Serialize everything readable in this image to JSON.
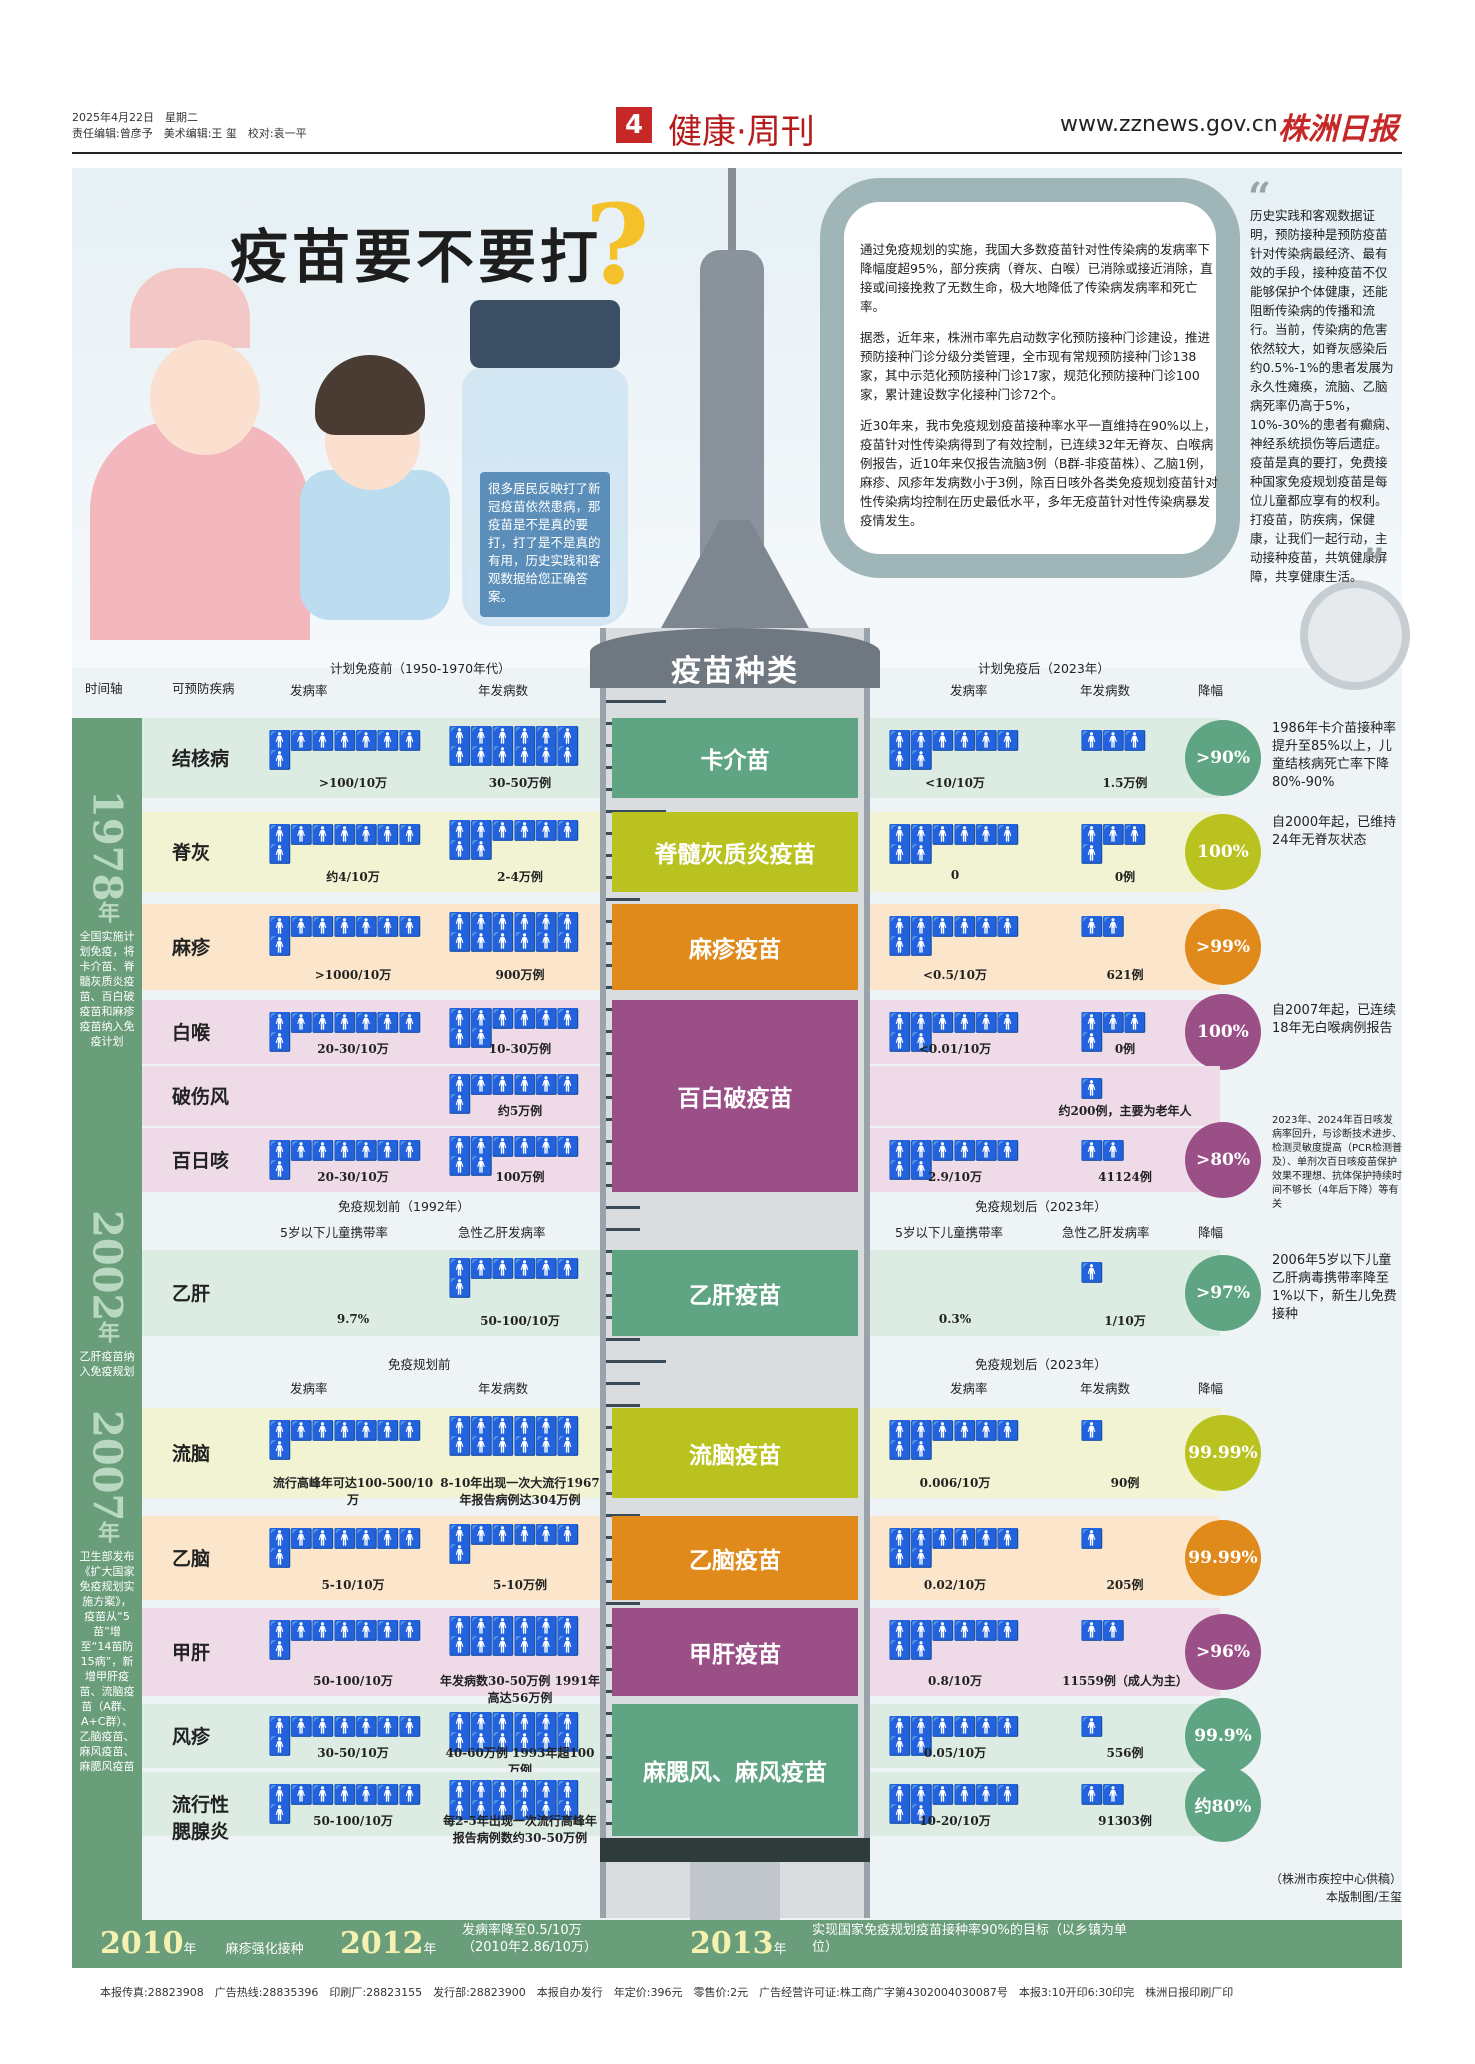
{
  "header": {
    "date": "2025年4月22日　星期二",
    "editors": "责任编辑:曾彦予　美术编辑:王 玺　校对:袁一平",
    "page_no": "4",
    "section": "健康·周刊",
    "site": "www.zznews.gov.cn",
    "brand": "株洲日报"
  },
  "hero": {
    "title": "疫苗要不要打",
    "vial_text": "很多居民反映打了新冠疫苗依然患病，那疫苗是不是真的要打，打了是不是真的有用，历史实践和客观数据给您正确答案。",
    "intro_1": "通过免疫规划的实施，我国大多数疫苗针对性传染病的发病率下降幅度超95%，部分疾病（脊灰、白喉）已消除或接近消除，直接或间接挽救了无数生命，极大地降低了传染病发病率和死亡率。",
    "intro_2": "据悉，近年来，株洲市率先启动数字化预防接种门诊建设，推进预防接种门诊分级分类管理，全市现有常规预防接种门诊138家，其中示范化预防接种门诊17家，规范化预防接种门诊100家，累计建设数字化接种门诊72个。",
    "intro_3": "近30年来，我市免疫规划疫苗接种率水平一直维持在90%以上，疫苗针对性传染病得到了有效控制，已连续32年无脊灰、白喉病例报告，近10年来仅报告流脑3例（B群-非疫苗株）、乙脑1例，麻疹、风疹年发病数小于3例，除百日咳外各类免疫规划疫苗针对性传染病均控制在历史最低水平，多年无疫苗针对性传染病暴发疫情发生。",
    "quote": "历史实践和客观数据证明，预防接种是预防疫苗针对传染病最经济、最有效的手段，接种疫苗不仅能够保护个体健康，还能阻断传染病的传播和流行。当前，传染病的危害依然较大，如脊灰感染后约0.5%-1%的患者发展为永久性瘫痪，流脑、乙脑病死率仍高于5%，10%-30%的患者有癫痫、神经系统损伤等后遗症。疫苗是真的要打，免费接种国家免疫规划疫苗是每位儿童都应享有的权利。打疫苗，防疾病，保健康，让我们一起行动，主动接种疫苗，共筑健康屏障，共享健康生活。"
  },
  "syringe_title": "疫苗种类",
  "col_heads": {
    "timeline": "时间轴",
    "disease": "可预防疾病",
    "before_1": "计划免疫前（1950-1970年代）",
    "after_1": "计划免疫后（2023年）",
    "rate": "发病率",
    "cases": "年发病数",
    "drop": "降幅",
    "before_2": "免疫规划前（1992年）",
    "after_2": "免疫规划后（2023年）",
    "carrier": "5岁以下儿童携带率",
    "acute": "急性乙肝发病率",
    "before_3": "免疫规划前",
    "after_3": "免疫规划后（2023年）"
  },
  "timeline": [
    {
      "year": "1978",
      "suffix": "年",
      "desc": "全国实施计划免疫，将卡介苗、脊髓灰质炎疫苗、百白破疫苗和麻疹疫苗纳入免疫计划"
    },
    {
      "year": "2002",
      "suffix": "年",
      "desc": "乙肝疫苗纳入免疫规划"
    },
    {
      "year": "2007",
      "suffix": "年",
      "desc": "卫生部发布《扩大国家免疫规划实施方案》，疫苗从“5苗”增至“14苗防15病”，新增甲肝疫苗、流脑疫苗（A群、A+C群）、乙脑疫苗、麻风疫苗、麻腮风疫苗"
    }
  ],
  "rows": [
    {
      "disease": "结核病",
      "vaccine": "卡介苗",
      "before_rate": ">100/10万",
      "before_cases": "30-50万例",
      "after_rate": "<10/10万",
      "after_cases": "1.5万例",
      "drop": ">90%",
      "note": "1986年卡介苗接种率提升至85%以上，儿童结核病死亡率下降80%-90%"
    },
    {
      "disease": "脊灰",
      "vaccine": "脊髓灰质炎疫苗",
      "before_rate": "约4/10万",
      "before_cases": "2-4万例",
      "after_rate": "0",
      "after_cases": "0例",
      "drop": "100%",
      "note": "自2000年起，已维持24年无脊灰状态"
    },
    {
      "disease": "麻疹",
      "vaccine": "麻疹疫苗",
      "before_rate": ">1000/10万",
      "before_cases": "900万例",
      "after_rate": "<0.5/10万",
      "after_cases": "621例",
      "drop": ">99%",
      "note": ""
    },
    {
      "disease": "白喉",
      "vaccine": "百白破疫苗",
      "before_rate": "20-30/10万",
      "before_cases": "10-30万例",
      "after_rate": "<0.01/10万",
      "after_cases": "0例",
      "drop": "100%",
      "note": "自2007年起，已连续18年无白喉病例报告"
    },
    {
      "disease": "破伤风",
      "vaccine": "",
      "before_rate": "",
      "before_cases": "约5万例",
      "after_rate": "",
      "after_cases": "约200例，主要为老年人",
      "drop": "",
      "note": ""
    },
    {
      "disease": "百日咳",
      "vaccine": "",
      "before_rate": "20-30/10万",
      "before_cases": "100万例",
      "after_rate": "2.9/10万",
      "after_cases": "41124例",
      "drop": ">80%",
      "note": "2023年、2024年百日咳发病率回升，与诊断技术进步、检测灵敏度提高（PCR检测普及）、单剂次百日咳疫苗保护效果不理想、抗体保护持续时间不够长（4年后下降）等有关"
    },
    {
      "disease": "乙肝",
      "vaccine": "乙肝疫苗",
      "before_rate": "9.7%",
      "before_cases": "50-100/10万",
      "after_rate": "0.3%",
      "after_cases": "1/10万",
      "drop": ">97%",
      "note": "2006年5岁以下儿童乙肝病毒携带率降至1%以下，新生儿免费接种"
    },
    {
      "disease": "流脑",
      "vaccine": "流脑疫苗",
      "before_rate": "流行高峰年可达100-500/10万",
      "before_cases": "8-10年出现一次大流行1967年报告病例达304万例",
      "after_rate": "0.006/10万",
      "after_cases": "90例",
      "drop": "99.99%",
      "note": ""
    },
    {
      "disease": "乙脑",
      "vaccine": "乙脑疫苗",
      "before_rate": "5-10/10万",
      "before_cases": "5-10万例",
      "after_rate": "0.02/10万",
      "after_cases": "205例",
      "drop": "99.99%",
      "note": ""
    },
    {
      "disease": "甲肝",
      "vaccine": "甲肝疫苗",
      "before_rate": "50-100/10万",
      "before_cases": "年发病数30-50万例 1991年高达56万例",
      "after_rate": "0.8/10万",
      "after_cases": "11559例（成人为主）",
      "drop": ">96%",
      "note": ""
    },
    {
      "disease": "风疹",
      "vaccine": "麻腮风、麻风疫苗",
      "before_rate": "30-50/10万",
      "before_cases": "40-60万例 1993年超100万例",
      "after_rate": "0.05/10万",
      "after_cases": "556例",
      "drop": "99.9%",
      "note": ""
    },
    {
      "disease": "流行性腮腺炎",
      "vaccine": "",
      "before_rate": "50-100/10万",
      "before_cases": "每2-5年出现一次流行高峰年报告病例数约30-50万例",
      "after_rate": "10-20/10万",
      "after_cases": "91303例",
      "drop": "约80%",
      "note": ""
    }
  ],
  "source": "（株洲市疾控中心供稿）本版制图/王玺",
  "bottom": [
    {
      "year": "2010",
      "suffix": "年",
      "desc": "麻疹强化接种"
    },
    {
      "year": "2012",
      "suffix": "年",
      "desc": "发病率降至0.5/10万（2010年2.86/10万）"
    },
    {
      "year": "2013",
      "suffix": "年",
      "desc": "实现国家免疫规划疫苗接种率90%的目标（以乡镇为单位）"
    }
  ],
  "footer": "本报传真:28823908　广告热线:28835396　印刷厂:28823155　发行部:28823900　本报自办发行　年定价:396元　零售价:2元　广告经营许可证:株工商广字第4302004030087号　本报3:10开印6:30印完　株洲日报印刷厂印",
  "colors": {
    "green": "#6a9e7a",
    "yellow": "#b9c21f",
    "orange": "#e08a1b",
    "purple": "#9b4f87",
    "teal": "#5fa583"
  }
}
